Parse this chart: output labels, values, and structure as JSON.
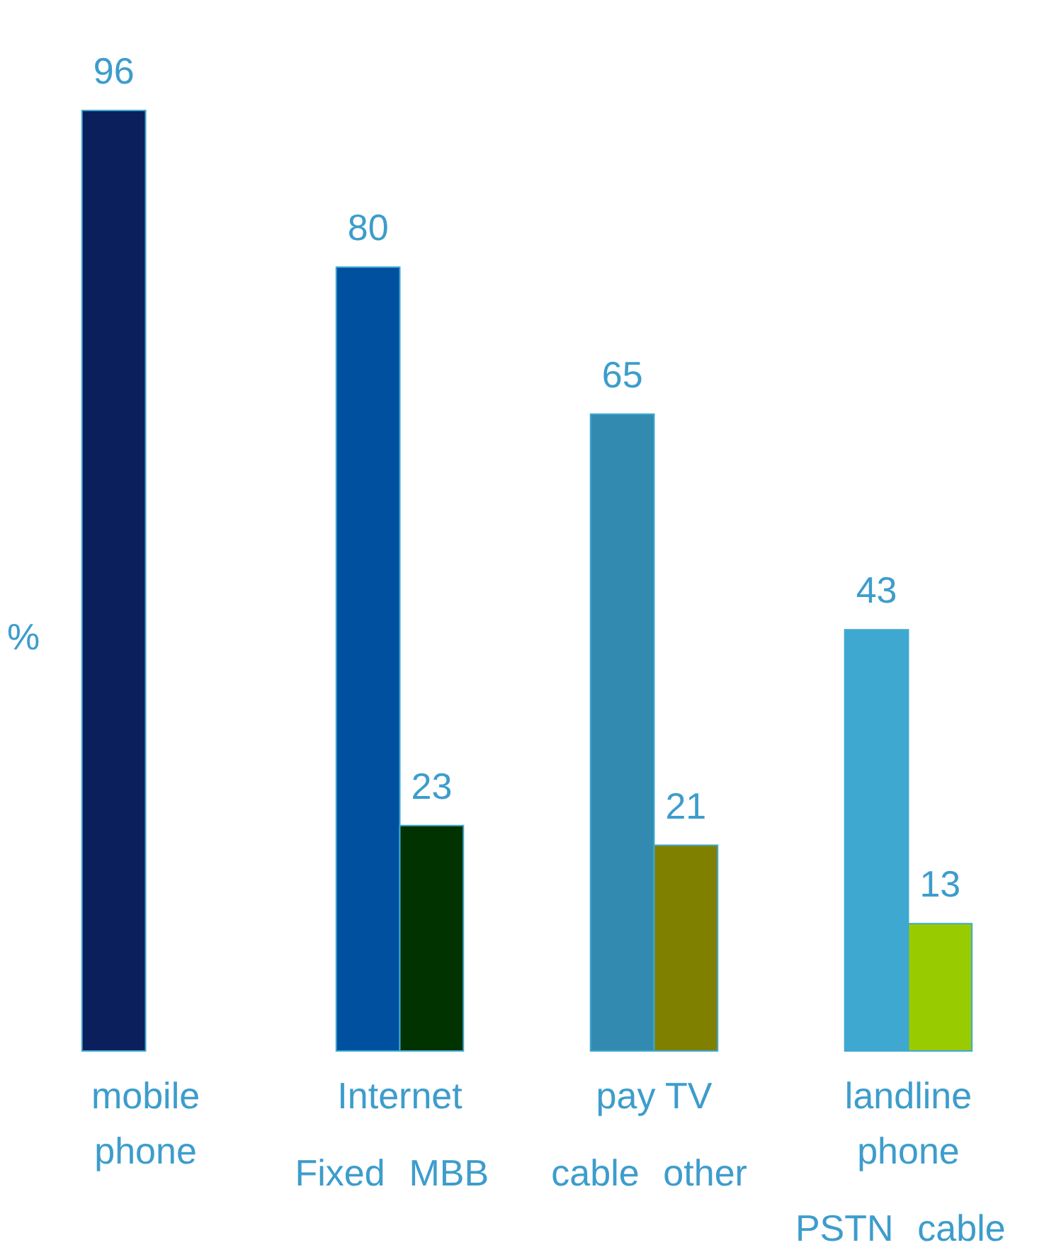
{
  "chart_data": {
    "type": "bar",
    "ylabel": "%",
    "categories": [
      "mobile phone",
      "Internet",
      "pay TV",
      "landline phone"
    ],
    "series": [
      {
        "colors": [
          "#0a1f5c",
          "#0050a0",
          "#338ab0",
          "#3fa8d0"
        ],
        "values": [
          96,
          80,
          65,
          43
        ]
      },
      {
        "colors": [
          null,
          "#003300",
          "#808000",
          "#99cc00"
        ],
        "values": [
          null,
          23,
          21,
          13
        ]
      }
    ],
    "data_labels": true,
    "grid": false,
    "annotations": [
      "Fixed",
      "MBB",
      "cable",
      "other",
      "PSTN",
      "cable"
    ]
  }
}
